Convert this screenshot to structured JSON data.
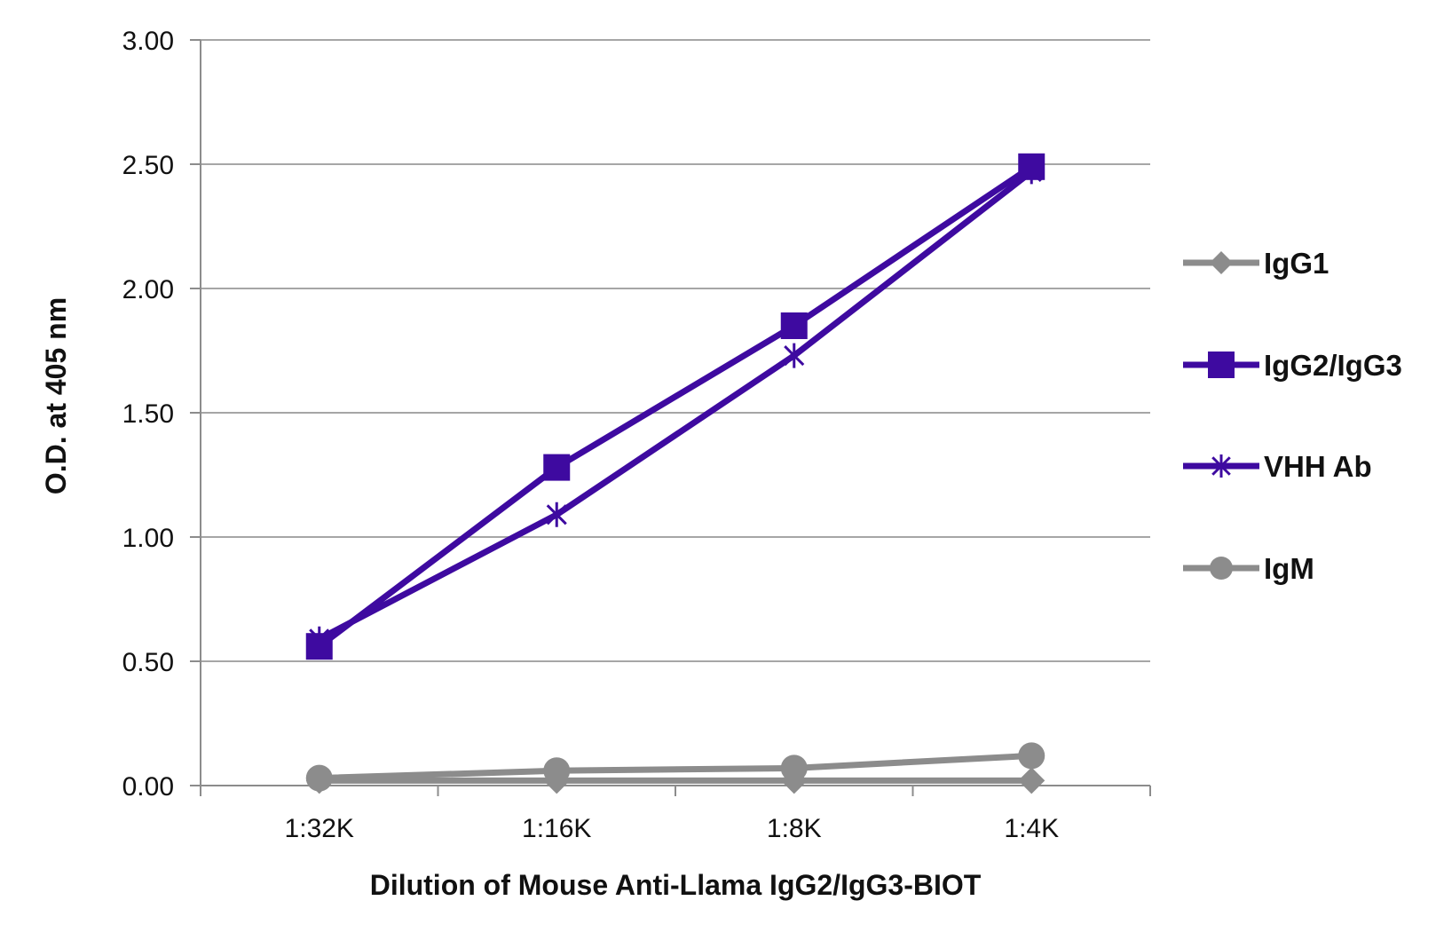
{
  "chart_data": {
    "type": "line",
    "categories": [
      "1:32K",
      "1:16K",
      "1:8K",
      "1:4K"
    ],
    "xlabel": "Dilution of Mouse Anti-Llama IgG2/IgG3-BIOT",
    "ylabel": "O.D. at 405 nm",
    "ylim": [
      0,
      3
    ],
    "yticks": [
      "0.00",
      "0.50",
      "1.00",
      "1.50",
      "2.00",
      "2.50",
      "3.00"
    ],
    "grid": true,
    "legend_position": "right",
    "series": [
      {
        "name": "IgG1",
        "values": [
          0.02,
          0.02,
          0.02,
          0.02
        ],
        "color": "#8c8c8c",
        "marker": "diamond"
      },
      {
        "name": "IgG2/IgG3",
        "values": [
          0.56,
          1.28,
          1.85,
          2.49
        ],
        "color": "#3e0aa0",
        "marker": "square"
      },
      {
        "name": "VHH Ab",
        "values": [
          0.59,
          1.09,
          1.73,
          2.47
        ],
        "color": "#3e0aa0",
        "marker": "asterisk"
      },
      {
        "name": "IgM",
        "values": [
          0.03,
          0.06,
          0.07,
          0.12
        ],
        "color": "#8c8c8c",
        "marker": "circle"
      }
    ]
  }
}
